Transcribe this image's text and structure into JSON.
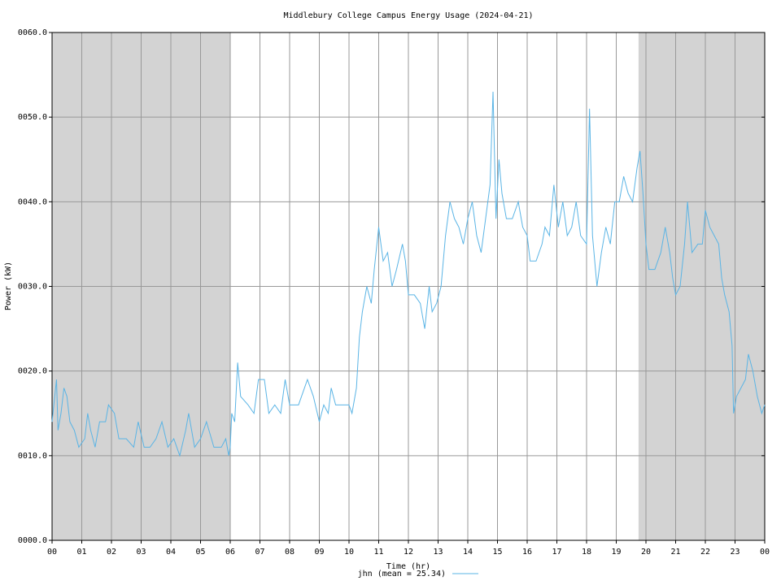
{
  "chart_data": {
    "type": "line",
    "title": "Middlebury College Campus Energy Usage (2024-04-21)",
    "xlabel": "Time (hr)",
    "ylabel": "Power (kW)",
    "xlim": [
      0,
      24
    ],
    "ylim": [
      0,
      60
    ],
    "xticks": [
      {
        "value": 0,
        "label": "00"
      },
      {
        "value": 1,
        "label": "01"
      },
      {
        "value": 2,
        "label": "02"
      },
      {
        "value": 3,
        "label": "03"
      },
      {
        "value": 4,
        "label": "04"
      },
      {
        "value": 5,
        "label": "05"
      },
      {
        "value": 6,
        "label": "06"
      },
      {
        "value": 7,
        "label": "07"
      },
      {
        "value": 8,
        "label": "08"
      },
      {
        "value": 9,
        "label": "09"
      },
      10,
      11,
      12,
      13,
      14,
      15,
      16,
      17,
      18,
      19,
      20,
      21,
      22,
      23,
      {
        "value": 24,
        "label": "00"
      }
    ],
    "yticks": [
      {
        "value": 0,
        "label": "0000.0"
      },
      {
        "value": 10,
        "label": "0010.0"
      },
      {
        "value": 20,
        "label": "0020.0"
      },
      {
        "value": 30,
        "label": "0030.0"
      },
      {
        "value": 40,
        "label": "0040.0"
      },
      {
        "value": 50,
        "label": "0050.0"
      },
      {
        "value": 60,
        "label": "0060.0"
      }
    ],
    "grid": true,
    "shaded_ranges": [
      [
        0,
        6
      ],
      [
        19.75,
        24
      ]
    ],
    "shade_color": "#d3d3d3",
    "x": [
      0.0,
      0.15,
      0.2,
      0.3,
      0.4,
      0.5,
      0.6,
      0.75,
      0.9,
      1.1,
      1.2,
      1.3,
      1.45,
      1.6,
      1.8,
      1.9,
      2.1,
      2.25,
      2.5,
      2.75,
      2.9,
      3.1,
      3.3,
      3.5,
      3.7,
      3.9,
      4.1,
      4.3,
      4.5,
      4.6,
      4.8,
      5.0,
      5.2,
      5.45,
      5.7,
      5.85,
      5.95,
      6.0,
      6.05,
      6.15,
      6.25,
      6.35,
      6.6,
      6.8,
      6.95,
      7.15,
      7.3,
      7.5,
      7.7,
      7.85,
      8.0,
      8.3,
      8.6,
      8.8,
      9.0,
      9.15,
      9.3,
      9.4,
      9.55,
      9.8,
      10.0,
      10.1,
      10.25,
      10.35,
      10.45,
      10.6,
      10.75,
      10.85,
      11.0,
      11.15,
      11.3,
      11.45,
      11.6,
      11.8,
      11.9,
      12.0,
      12.2,
      12.4,
      12.55,
      12.7,
      12.8,
      12.95,
      13.1,
      13.25,
      13.4,
      13.55,
      13.7,
      13.85,
      14.0,
      14.15,
      14.3,
      14.45,
      14.6,
      14.75,
      14.85,
      14.95,
      15.05,
      15.15,
      15.3,
      15.5,
      15.7,
      15.85,
      16.0,
      16.1,
      16.3,
      16.5,
      16.6,
      16.75,
      16.9,
      17.05,
      17.2,
      17.35,
      17.5,
      17.65,
      17.8,
      18.0,
      18.1,
      18.2,
      18.35,
      18.5,
      18.65,
      18.8,
      18.95,
      19.1,
      19.25,
      19.4,
      19.55,
      19.7,
      19.8,
      19.9,
      20.0,
      20.1,
      20.3,
      20.5,
      20.65,
      20.8,
      20.9,
      21.0,
      21.15,
      21.3,
      21.4,
      21.55,
      21.75,
      21.9,
      22.0,
      22.15,
      22.3,
      22.45,
      22.55,
      22.65,
      22.8,
      22.9,
      22.95,
      23.05,
      23.2,
      23.35,
      23.45,
      23.6,
      23.75,
      23.9,
      24.0
    ],
    "series": [
      {
        "name": "jhn (mean = 25.34)",
        "color": "#5ab4e5",
        "values": [
          14,
          19,
          13,
          15,
          18,
          17,
          14,
          13,
          11,
          12,
          15,
          13,
          11,
          14,
          14,
          16,
          15,
          12,
          12,
          11,
          14,
          11,
          11,
          12,
          14,
          11,
          12,
          10,
          13,
          15,
          11,
          12,
          14,
          11,
          11,
          12,
          10,
          11,
          15,
          14,
          21,
          17,
          16,
          15,
          19,
          19,
          15,
          16,
          15,
          19,
          16,
          16,
          19,
          17,
          14,
          16,
          15,
          18,
          16,
          16,
          16,
          15,
          18,
          24,
          27,
          30,
          28,
          32,
          37,
          33,
          34,
          30,
          32,
          35,
          33,
          29,
          29,
          28,
          25,
          30,
          27,
          28,
          30,
          36,
          40,
          38,
          37,
          35,
          38,
          40,
          36,
          34,
          38,
          42,
          53,
          38,
          45,
          41,
          38,
          38,
          40,
          37,
          36,
          33,
          33,
          35,
          37,
          36,
          42,
          37,
          40,
          36,
          37,
          40,
          36,
          35,
          51,
          36,
          30,
          34,
          37,
          35,
          40,
          40,
          43,
          41,
          40,
          44,
          46,
          41,
          35,
          32,
          32,
          34,
          37,
          34,
          31,
          29,
          30,
          35,
          40,
          34,
          35,
          35,
          39,
          37,
          36,
          35,
          31,
          29,
          27,
          23,
          15,
          17,
          18,
          19,
          22,
          20,
          17,
          15,
          16
        ]
      }
    ]
  }
}
